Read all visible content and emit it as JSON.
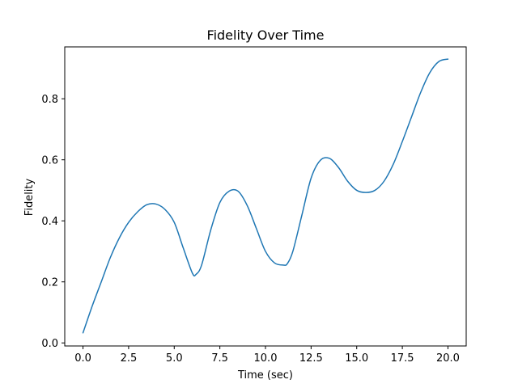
{
  "chart_data": {
    "type": "line",
    "title": "Fidelity Over Time",
    "xlabel": "Time (sec)",
    "ylabel": "Fidelity",
    "xlim": [
      -1.0,
      21.0
    ],
    "ylim": [
      -0.01,
      0.97
    ],
    "xticks": [
      0,
      2.5,
      5,
      7.5,
      10,
      12.5,
      15,
      17.5,
      20
    ],
    "xtick_labels": [
      "0.0",
      "2.5",
      "5.0",
      "7.5",
      "10.0",
      "12.5",
      "15.0",
      "17.5",
      "20.0"
    ],
    "yticks": [
      0.0,
      0.2,
      0.4,
      0.6,
      0.8
    ],
    "ytick_labels": [
      "0.0",
      "0.2",
      "0.4",
      "0.6",
      "0.8"
    ],
    "grid": false,
    "legend": false,
    "colors": {
      "line": "#1f77b4"
    },
    "series": [
      {
        "x": [
          0.0,
          0.5,
          1.0,
          1.5,
          2.0,
          2.5,
          3.0,
          3.5,
          4.0,
          4.5,
          5.0,
          5.5,
          6.0,
          6.2,
          6.5,
          7.0,
          7.5,
          8.0,
          8.5,
          9.0,
          9.5,
          10.0,
          10.5,
          11.0,
          11.2,
          11.5,
          12.0,
          12.5,
          13.0,
          13.5,
          14.0,
          14.5,
          15.0,
          15.5,
          16.0,
          16.5,
          17.0,
          17.5,
          18.0,
          18.5,
          19.0,
          19.5,
          20.0
        ],
        "y": [
          0.033,
          0.12,
          0.2,
          0.28,
          0.345,
          0.395,
          0.43,
          0.453,
          0.455,
          0.437,
          0.395,
          0.31,
          0.228,
          0.225,
          0.255,
          0.37,
          0.46,
          0.497,
          0.497,
          0.45,
          0.375,
          0.3,
          0.262,
          0.255,
          0.26,
          0.3,
          0.42,
          0.54,
          0.598,
          0.605,
          0.575,
          0.53,
          0.5,
          0.493,
          0.5,
          0.53,
          0.585,
          0.66,
          0.74,
          0.82,
          0.885,
          0.922,
          0.93
        ]
      }
    ]
  }
}
